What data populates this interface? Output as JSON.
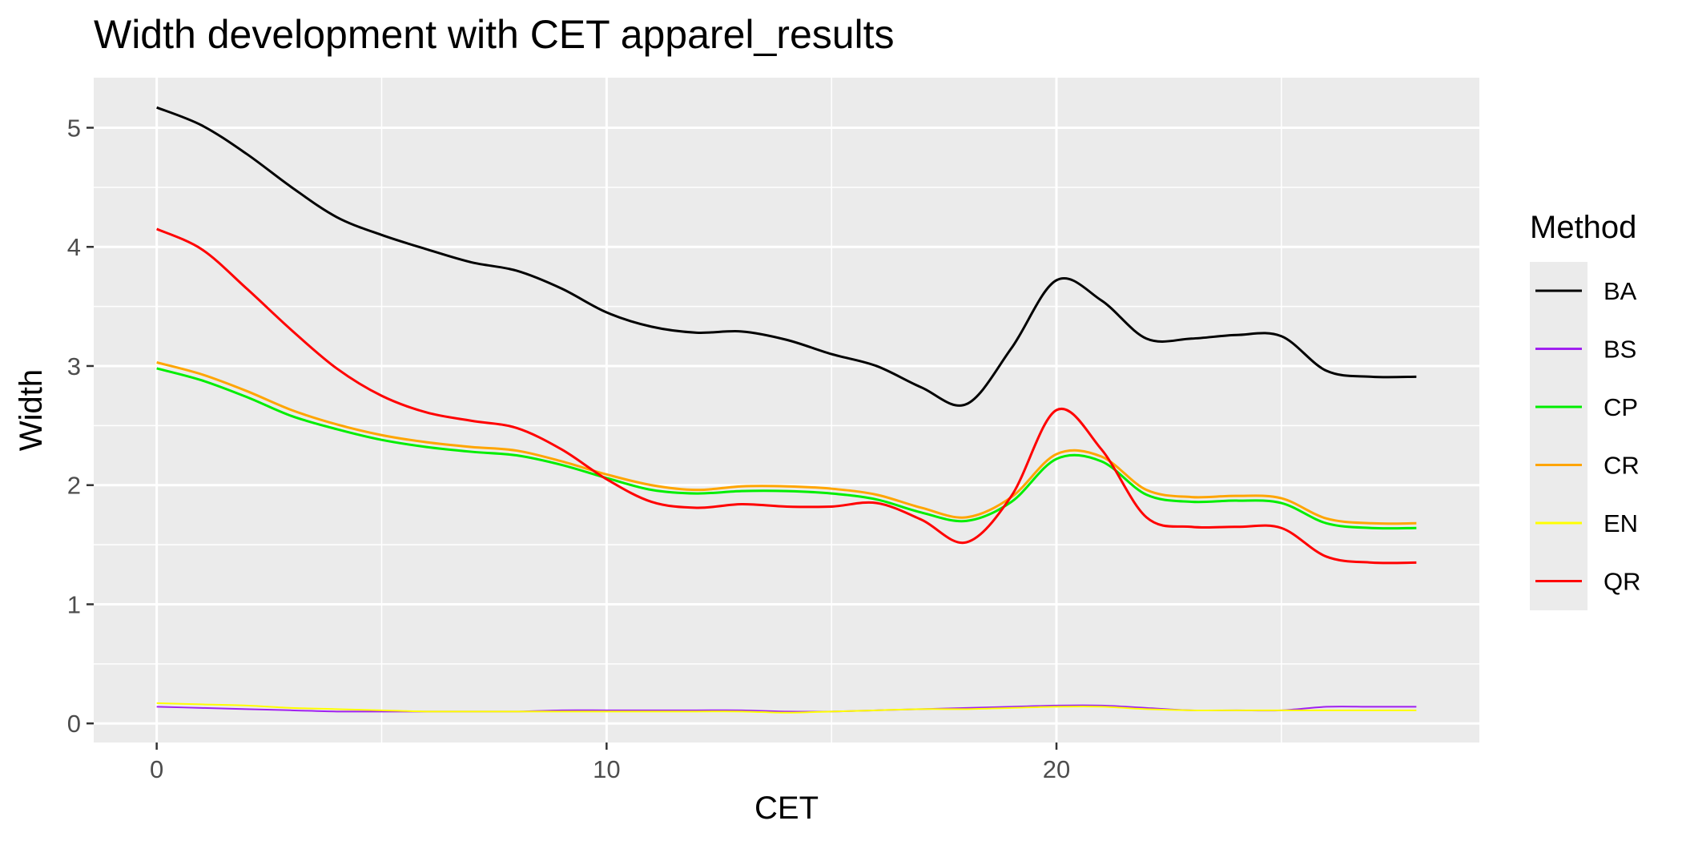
{
  "chart_data": {
    "type": "line",
    "title": "Width development with CET apparel_results",
    "xlabel": "CET",
    "ylabel": "Width",
    "xlim": [
      -1.4,
      29.4
    ],
    "ylim": [
      -0.16,
      5.42
    ],
    "x_ticks": [
      0,
      10,
      20
    ],
    "x_tick_labels": [
      "0",
      "10",
      "20"
    ],
    "y_ticks": [
      0,
      1,
      2,
      3,
      4,
      5
    ],
    "y_tick_labels": [
      "0",
      "1",
      "2",
      "3",
      "4",
      "5"
    ],
    "grid": true,
    "legend": {
      "title": "Method",
      "position": "right"
    },
    "x": [
      0,
      1,
      2,
      3,
      4,
      5,
      6,
      7,
      8,
      9,
      10,
      11,
      12,
      13,
      14,
      15,
      16,
      17,
      18,
      19,
      20,
      21,
      22,
      23,
      24,
      25,
      26,
      27,
      28
    ],
    "series": [
      {
        "name": "BA",
        "color": "#000000",
        "values": [
          5.17,
          5.02,
          4.78,
          4.5,
          4.25,
          4.1,
          3.98,
          3.87,
          3.8,
          3.65,
          3.45,
          3.33,
          3.28,
          3.29,
          3.22,
          3.1,
          3.0,
          2.82,
          2.68,
          3.15,
          3.72,
          3.55,
          3.23,
          3.23,
          3.26,
          3.25,
          2.96,
          2.91,
          2.91
        ]
      },
      {
        "name": "BS",
        "color": "#a020f0",
        "values": [
          0.14,
          0.13,
          0.12,
          0.11,
          0.1,
          0.1,
          0.1,
          0.1,
          0.1,
          0.11,
          0.11,
          0.11,
          0.11,
          0.11,
          0.1,
          0.1,
          0.11,
          0.12,
          0.13,
          0.14,
          0.15,
          0.15,
          0.13,
          0.11,
          0.11,
          0.11,
          0.14,
          0.14,
          0.14
        ]
      },
      {
        "name": "CP",
        "color": "#00ee00",
        "values": [
          2.98,
          2.88,
          2.74,
          2.58,
          2.47,
          2.38,
          2.32,
          2.28,
          2.25,
          2.17,
          2.06,
          1.96,
          1.93,
          1.95,
          1.95,
          1.93,
          1.88,
          1.77,
          1.7,
          1.86,
          2.22,
          2.2,
          1.92,
          1.86,
          1.87,
          1.85,
          1.68,
          1.64,
          1.64
        ]
      },
      {
        "name": "CR",
        "color": "#ffa500",
        "values": [
          3.03,
          2.93,
          2.79,
          2.63,
          2.51,
          2.42,
          2.36,
          2.32,
          2.29,
          2.2,
          2.09,
          2.0,
          1.96,
          1.99,
          1.99,
          1.97,
          1.92,
          1.81,
          1.73,
          1.9,
          2.26,
          2.24,
          1.96,
          1.9,
          1.91,
          1.89,
          1.72,
          1.68,
          1.68
        ]
      },
      {
        "name": "EN",
        "color": "#ffff00",
        "values": [
          0.17,
          0.16,
          0.15,
          0.13,
          0.12,
          0.11,
          0.1,
          0.1,
          0.1,
          0.1,
          0.1,
          0.1,
          0.1,
          0.1,
          0.09,
          0.1,
          0.11,
          0.12,
          0.12,
          0.13,
          0.14,
          0.14,
          0.12,
          0.11,
          0.11,
          0.11,
          0.11,
          0.11,
          0.11
        ]
      },
      {
        "name": "QR",
        "color": "#ff0000",
        "values": [
          4.15,
          3.98,
          3.65,
          3.3,
          2.98,
          2.75,
          2.61,
          2.54,
          2.48,
          2.3,
          2.05,
          1.86,
          1.81,
          1.84,
          1.82,
          1.82,
          1.85,
          1.71,
          1.52,
          1.91,
          2.63,
          2.3,
          1.73,
          1.65,
          1.65,
          1.64,
          1.4,
          1.35,
          1.35
        ]
      }
    ]
  }
}
